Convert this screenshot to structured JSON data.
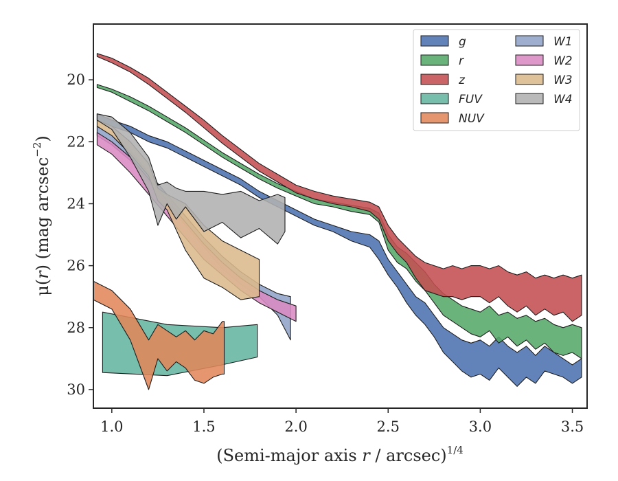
{
  "chart_data": {
    "type": "area",
    "title": "",
    "xlabel": {
      "main": "(Semi-major axis ",
      "var": "r",
      "mid": " / arcsec)",
      "sup": "1/4"
    },
    "ylabel": {
      "pre": "μ(",
      "var": "r",
      "post": ") (mag arcsec",
      "sup": "−2",
      "end": ")"
    },
    "xlim": [
      0.9,
      3.58
    ],
    "ylim": [
      30.6,
      18.2
    ],
    "y_inverted": true,
    "xticks": [
      1.0,
      1.5,
      2.0,
      2.5,
      3.0,
      3.5
    ],
    "xtick_labels": [
      "1.0",
      "1.5",
      "2.0",
      "2.5",
      "3.0",
      "3.5"
    ],
    "yticks": [
      20,
      22,
      24,
      26,
      28,
      30
    ],
    "ytick_labels": [
      "20",
      "22",
      "24",
      "26",
      "28",
      "30"
    ],
    "grid": false,
    "legend_position": "top-right",
    "legend_columns": 2,
    "series": [
      {
        "name": "g",
        "color": "#4c72b0",
        "x": [
          0.92,
          1.0,
          1.1,
          1.2,
          1.3,
          1.4,
          1.5,
          1.6,
          1.7,
          1.8,
          1.9,
          2.0,
          2.1,
          2.2,
          2.3,
          2.4,
          2.45,
          2.5,
          2.55,
          2.6,
          2.65,
          2.7,
          2.75,
          2.8,
          2.85,
          2.9,
          2.95,
          3.0,
          3.05,
          3.1,
          3.15,
          3.2,
          3.25,
          3.3,
          3.35,
          3.4,
          3.45,
          3.5,
          3.55
        ],
        "lower": [
          21.1,
          21.3,
          21.5,
          21.8,
          22.0,
          22.3,
          22.6,
          22.9,
          23.2,
          23.6,
          23.9,
          24.2,
          24.5,
          24.7,
          24.9,
          25.0,
          25.2,
          25.8,
          26.2,
          26.6,
          27.0,
          27.2,
          27.6,
          28.0,
          28.2,
          28.4,
          28.5,
          28.4,
          28.6,
          28.3,
          28.6,
          28.8,
          28.6,
          28.9,
          28.6,
          28.8,
          29.0,
          29.2,
          29.0
        ],
        "upper": [
          21.3,
          21.5,
          21.7,
          22.0,
          22.2,
          22.5,
          22.8,
          23.1,
          23.4,
          23.8,
          24.1,
          24.4,
          24.7,
          24.9,
          25.2,
          25.4,
          25.8,
          26.3,
          26.7,
          27.2,
          27.6,
          27.9,
          28.3,
          28.8,
          29.1,
          29.4,
          29.6,
          29.5,
          29.7,
          29.3,
          29.6,
          29.9,
          29.6,
          29.8,
          29.4,
          29.5,
          29.6,
          29.8,
          29.6
        ]
      },
      {
        "name": "r",
        "color": "#55a868",
        "x": [
          0.92,
          1.0,
          1.1,
          1.2,
          1.3,
          1.4,
          1.5,
          1.6,
          1.7,
          1.8,
          1.9,
          2.0,
          2.1,
          2.2,
          2.3,
          2.4,
          2.45,
          2.5,
          2.55,
          2.6,
          2.65,
          2.7,
          2.75,
          2.8,
          2.85,
          2.9,
          2.95,
          3.0,
          3.05,
          3.1,
          3.15,
          3.2,
          3.25,
          3.3,
          3.35,
          3.4,
          3.45,
          3.5,
          3.55
        ],
        "lower": [
          20.15,
          20.3,
          20.55,
          20.85,
          21.2,
          21.55,
          21.95,
          22.35,
          22.7,
          23.05,
          23.35,
          23.6,
          23.85,
          23.95,
          24.05,
          24.15,
          24.3,
          25.0,
          25.4,
          25.6,
          25.9,
          26.2,
          26.6,
          26.9,
          27.1,
          27.3,
          27.4,
          27.5,
          27.3,
          27.6,
          27.5,
          27.7,
          27.6,
          27.8,
          27.7,
          27.9,
          28.0,
          27.9,
          28.0
        ],
        "upper": [
          20.25,
          20.4,
          20.7,
          21.0,
          21.35,
          21.7,
          22.1,
          22.5,
          22.85,
          23.2,
          23.5,
          23.75,
          24.0,
          24.1,
          24.25,
          24.35,
          24.6,
          25.5,
          25.9,
          26.1,
          26.5,
          26.8,
          27.2,
          27.6,
          27.8,
          28.0,
          28.2,
          28.3,
          28.1,
          28.5,
          28.3,
          28.6,
          28.4,
          28.7,
          28.5,
          28.8,
          28.9,
          28.8,
          29.0
        ]
      },
      {
        "name": "z",
        "color": "#c44e52",
        "x": [
          0.92,
          1.0,
          1.1,
          1.2,
          1.3,
          1.4,
          1.5,
          1.6,
          1.7,
          1.8,
          1.9,
          2.0,
          2.1,
          2.2,
          2.3,
          2.4,
          2.45,
          2.5,
          2.55,
          2.6,
          2.65,
          2.7,
          2.75,
          2.8,
          2.85,
          2.9,
          2.95,
          3.0,
          3.05,
          3.1,
          3.15,
          3.2,
          3.25,
          3.3,
          3.35,
          3.4,
          3.45,
          3.5,
          3.55
        ],
        "lower": [
          19.15,
          19.3,
          19.6,
          19.95,
          20.4,
          20.85,
          21.3,
          21.8,
          22.25,
          22.7,
          23.05,
          23.4,
          23.6,
          23.75,
          23.85,
          23.95,
          24.1,
          24.7,
          25.1,
          25.4,
          25.7,
          25.9,
          26.0,
          26.1,
          26.0,
          26.1,
          26.0,
          26.0,
          26.1,
          26.0,
          26.2,
          26.3,
          26.2,
          26.4,
          26.3,
          26.4,
          26.3,
          26.4,
          26.3
        ],
        "upper": [
          19.25,
          19.45,
          19.75,
          20.15,
          20.6,
          21.05,
          21.55,
          22.05,
          22.5,
          22.95,
          23.3,
          23.65,
          23.85,
          24.0,
          24.1,
          24.25,
          24.5,
          25.2,
          25.6,
          25.9,
          26.4,
          26.8,
          26.9,
          27.0,
          27.0,
          27.1,
          27.0,
          27.0,
          27.2,
          27.0,
          27.3,
          27.5,
          27.3,
          27.6,
          27.4,
          27.6,
          27.5,
          27.8,
          27.6
        ]
      },
      {
        "name": "FUV",
        "color": "#64b5a0",
        "x": [
          0.95,
          1.3,
          1.6,
          1.79
        ],
        "lower": [
          27.5,
          27.9,
          28.0,
          27.9
        ],
        "upper": [
          29.45,
          29.55,
          29.2,
          28.95
        ]
      },
      {
        "name": "NUV",
        "color": "#e1875a",
        "x": [
          0.9,
          1.0,
          1.1,
          1.2,
          1.25,
          1.3,
          1.35,
          1.4,
          1.45,
          1.5,
          1.55,
          1.6,
          1.61
        ],
        "lower": [
          26.5,
          26.8,
          27.4,
          28.4,
          27.9,
          28.1,
          28.3,
          28.1,
          28.4,
          28.1,
          28.2,
          27.8,
          27.8
        ],
        "upper": [
          27.1,
          27.4,
          28.4,
          30.0,
          29.0,
          29.4,
          29.1,
          29.3,
          29.7,
          29.8,
          29.6,
          29.5,
          29.5
        ]
      },
      {
        "name": "W1",
        "color": "#8fa3c8",
        "x": [
          0.92,
          1.0,
          1.1,
          1.2,
          1.3,
          1.4,
          1.5,
          1.6,
          1.7,
          1.8,
          1.9,
          1.97
        ],
        "lower": [
          21.5,
          21.8,
          22.3,
          23.0,
          23.7,
          24.4,
          25.1,
          25.7,
          26.2,
          26.6,
          26.9,
          27.0
        ],
        "upper": [
          21.8,
          22.1,
          22.6,
          23.3,
          24.0,
          24.7,
          25.4,
          26.1,
          26.6,
          27.0,
          27.6,
          28.4
        ]
      },
      {
        "name": "W2",
        "color": "#da8bc3",
        "x": [
          0.92,
          1.0,
          1.1,
          1.2,
          1.3,
          1.4,
          1.5,
          1.6,
          1.7,
          1.8,
          1.9,
          2.0
        ],
        "lower": [
          21.7,
          22.0,
          22.5,
          23.2,
          23.9,
          24.6,
          25.3,
          25.9,
          26.4,
          26.8,
          27.1,
          27.3
        ],
        "upper": [
          22.1,
          22.4,
          23.0,
          23.7,
          24.4,
          25.1,
          25.8,
          26.3,
          26.8,
          27.2,
          27.5,
          27.8
        ]
      },
      {
        "name": "W3",
        "color": "#dcb98c",
        "x": [
          0.92,
          1.0,
          1.1,
          1.2,
          1.25,
          1.3,
          1.4,
          1.5,
          1.6,
          1.7,
          1.8
        ],
        "lower": [
          21.3,
          21.5,
          22.0,
          22.7,
          23.5,
          23.7,
          24.0,
          24.7,
          25.2,
          25.5,
          25.8
        ],
        "upper": [
          21.5,
          21.8,
          22.4,
          23.1,
          23.9,
          24.2,
          25.5,
          26.4,
          26.7,
          27.1,
          27.0
        ]
      },
      {
        "name": "W4",
        "color": "#b0b0b0",
        "x": [
          0.92,
          1.0,
          1.1,
          1.2,
          1.25,
          1.3,
          1.35,
          1.4,
          1.5,
          1.6,
          1.7,
          1.8,
          1.9,
          1.94
        ],
        "lower": [
          21.1,
          21.2,
          21.7,
          22.5,
          23.4,
          23.3,
          23.5,
          23.6,
          23.6,
          23.7,
          23.6,
          23.9,
          23.7,
          23.8
        ],
        "upper": [
          21.3,
          21.6,
          22.5,
          23.6,
          24.7,
          24.0,
          24.5,
          24.1,
          24.9,
          24.6,
          25.1,
          24.8,
          25.3,
          24.9
        ]
      }
    ]
  }
}
